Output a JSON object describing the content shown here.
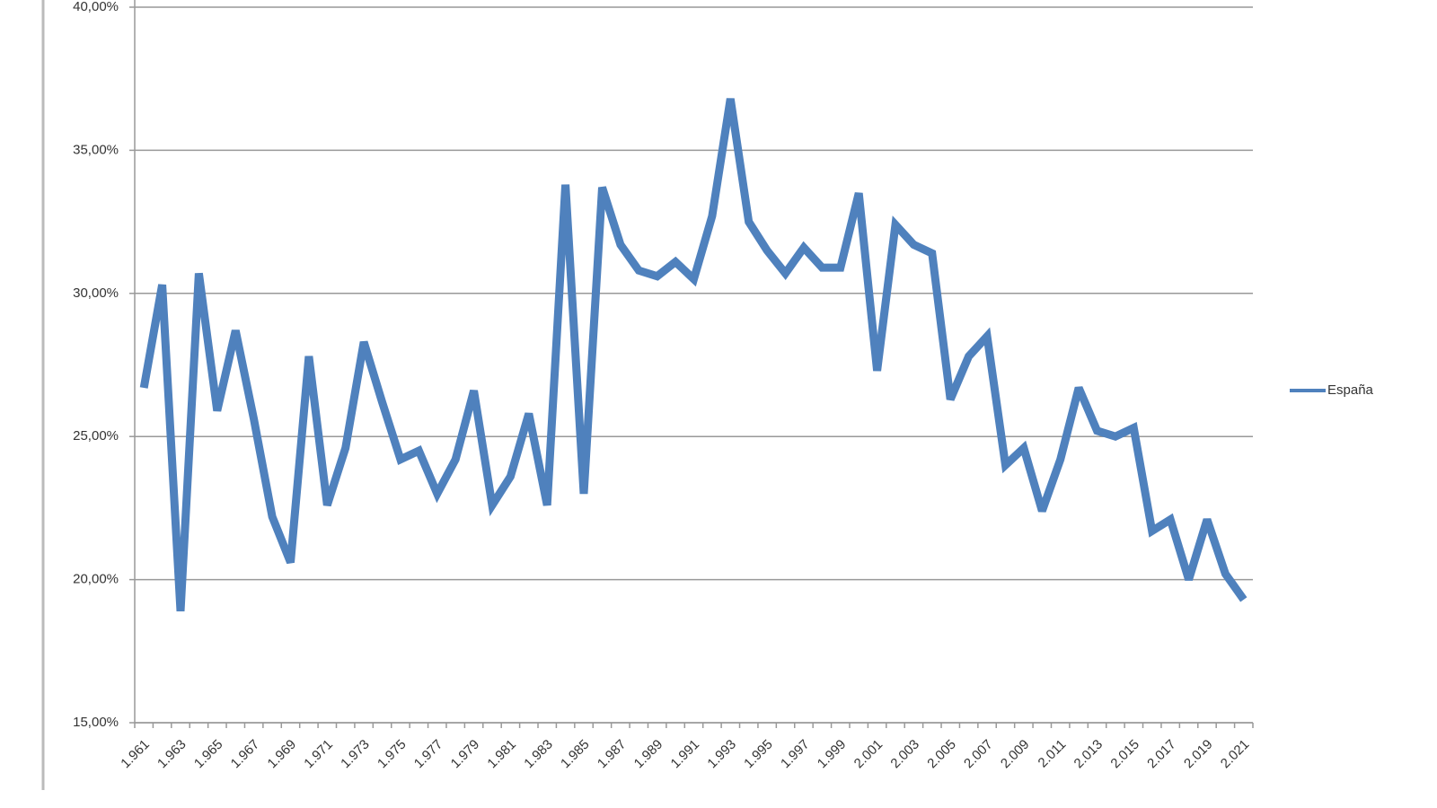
{
  "chart_data": {
    "type": "line",
    "categories": [
      "1.961",
      null,
      "1.963",
      null,
      "1.965",
      null,
      "1.967",
      null,
      "1.969",
      null,
      "1.971",
      null,
      "1.973",
      null,
      "1.975",
      null,
      "1.977",
      null,
      "1.979",
      null,
      "1.981",
      null,
      "1.983",
      null,
      "1.985",
      null,
      "1.987",
      null,
      "1.989",
      null,
      "1.991",
      null,
      "1.993",
      null,
      "1.995",
      null,
      "1.997",
      null,
      "1.999",
      null,
      "2.001",
      null,
      "2.003",
      null,
      "2.005",
      null,
      "2.007",
      null,
      "2.009",
      null,
      "2.011",
      null,
      "2.013",
      null,
      "2.015",
      null,
      "2.017",
      null,
      "2.019",
      null,
      "2.021"
    ],
    "series": [
      {
        "name": "España",
        "color": "#4f81bd",
        "values": [
          26.7,
          30.3,
          18.9,
          30.7,
          25.9,
          28.7,
          25.6,
          22.2,
          20.6,
          27.8,
          22.6,
          24.6,
          28.3,
          26.2,
          24.2,
          24.5,
          23.0,
          24.2,
          26.6,
          22.6,
          23.6,
          25.8,
          22.6,
          33.8,
          23.0,
          33.7,
          31.7,
          30.8,
          30.6,
          31.1,
          30.5,
          32.7,
          36.8,
          32.5,
          31.5,
          30.7,
          31.6,
          30.9,
          30.9,
          33.5,
          27.3,
          32.4,
          31.7,
          31.4,
          26.3,
          27.8,
          28.5,
          24.0,
          24.6,
          22.4,
          24.2,
          26.7,
          25.2,
          25.0,
          25.3,
          21.7,
          22.1,
          20.0,
          22.1,
          20.2,
          19.3
        ]
      }
    ],
    "ylim": [
      15,
      40
    ],
    "yticks": [
      {
        "value": 15,
        "label": "15,00%"
      },
      {
        "value": 20,
        "label": "20,00%"
      },
      {
        "value": 25,
        "label": "25,00%"
      },
      {
        "value": 30,
        "label": "30,00%"
      },
      {
        "value": 35,
        "label": "35,00%"
      },
      {
        "value": 40,
        "label": "40,00%"
      }
    ],
    "grid": true,
    "legend": "right"
  }
}
